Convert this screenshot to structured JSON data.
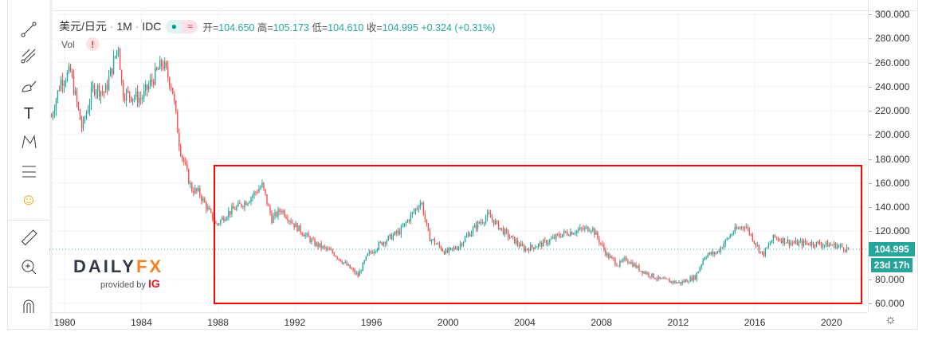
{
  "legend": {
    "symbol": "美元/日元",
    "sep1": "·",
    "interval": "1M",
    "sep2": "·",
    "source": "IDC",
    "open_label": "开=",
    "open": "104.650",
    "high_label": "高=",
    "high": "105.173",
    "low_label": "低=",
    "low": "104.610",
    "close_label": "收=",
    "close": "104.995",
    "change": "+0.324 (+0.31%)"
  },
  "volume": {
    "label": "Vol",
    "warning": "!"
  },
  "price_tag": {
    "price": "104.995",
    "countdown": "23d 17h"
  },
  "logo": {
    "brand_a": "DAILY",
    "brand_b": "FX",
    "provided": "provided by",
    "ig": "IG"
  },
  "toolbar": [
    "line-tool-icon",
    "pitchfork-icon",
    "brush-icon",
    "text-icon",
    "pattern-icon",
    "prediction-icon",
    "emoji-icon",
    "ruler-icon",
    "zoom-in-icon",
    "magnet-icon"
  ],
  "colors": {
    "up": "#26a69a",
    "down": "#ef5350",
    "annotation": "#ff0000"
  },
  "chart_data": {
    "type": "candlestick",
    "title": "美元/日元 · 1M · IDC",
    "ylim": [
      60,
      300
    ],
    "y_ticks": [
      "300.000",
      "280.000",
      "260.000",
      "240.000",
      "220.000",
      "200.000",
      "180.000",
      "160.000",
      "140.000",
      "120.000",
      "80.000",
      "60.000"
    ],
    "x_ticks": [
      "1980",
      "1984",
      "1988",
      "1992",
      "1996",
      "2000",
      "2004",
      "2008",
      "2012",
      "2016",
      "2020"
    ],
    "xlim": [
      1979.2,
      2021.9
    ],
    "last_price": 104.995,
    "approx_path": [
      [
        1979.3,
        215
      ],
      [
        1979.8,
        245
      ],
      [
        1980.3,
        252
      ],
      [
        1980.9,
        205
      ],
      [
        1981.5,
        240
      ],
      [
        1982.1,
        235
      ],
      [
        1982.8,
        275
      ],
      [
        1983.0,
        235
      ],
      [
        1984.0,
        230
      ],
      [
        1985.1,
        260
      ],
      [
        1985.6,
        240
      ],
      [
        1986.0,
        190
      ],
      [
        1986.6,
        155
      ],
      [
        1987.0,
        152
      ],
      [
        1987.9,
        125
      ],
      [
        1988.5,
        135
      ],
      [
        1989.5,
        145
      ],
      [
        1990.3,
        158
      ],
      [
        1990.8,
        130
      ],
      [
        1991.3,
        138
      ],
      [
        1992.0,
        125
      ],
      [
        1993.0,
        110
      ],
      [
        1994.0,
        102
      ],
      [
        1995.3,
        83
      ],
      [
        1995.8,
        100
      ],
      [
        1996.5,
        110
      ],
      [
        1997.5,
        120
      ],
      [
        1998.6,
        145
      ],
      [
        1999.0,
        115
      ],
      [
        1999.9,
        102
      ],
      [
        2000.5,
        107
      ],
      [
        2001.5,
        125
      ],
      [
        2002.1,
        133
      ],
      [
        2003.0,
        118
      ],
      [
        2004.0,
        105
      ],
      [
        2005.0,
        110
      ],
      [
        2006.0,
        118
      ],
      [
        2007.5,
        123
      ],
      [
        2008.3,
        100
      ],
      [
        2008.9,
        92
      ],
      [
        2009.3,
        97
      ],
      [
        2010.0,
        88
      ],
      [
        2011.0,
        80
      ],
      [
        2012.1,
        77
      ],
      [
        2012.9,
        82
      ],
      [
        2013.4,
        100
      ],
      [
        2014.0,
        102
      ],
      [
        2014.9,
        120
      ],
      [
        2015.5,
        125
      ],
      [
        2016.4,
        100
      ],
      [
        2017.0,
        115
      ],
      [
        2018.0,
        110
      ],
      [
        2019.0,
        110
      ],
      [
        2020.3,
        108
      ],
      [
        2020.9,
        104.995
      ]
    ]
  }
}
